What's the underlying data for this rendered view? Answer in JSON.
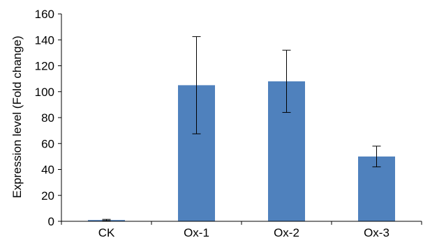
{
  "chart_data": {
    "type": "bar",
    "title": "",
    "xlabel": "",
    "ylabel": "Expression level (Fold change)",
    "categories": [
      "CK",
      "Ox-1",
      "Ox-2",
      "Ox-3"
    ],
    "values": [
      1,
      105,
      108,
      50
    ],
    "error": [
      0.5,
      37.5,
      24,
      8
    ],
    "ylim": [
      0,
      160
    ],
    "yticks": [
      0,
      20,
      40,
      60,
      80,
      100,
      120,
      140,
      160
    ],
    "grid": false,
    "legend": "none",
    "bar_color": "#4f81bd",
    "error_color": "#000000"
  }
}
